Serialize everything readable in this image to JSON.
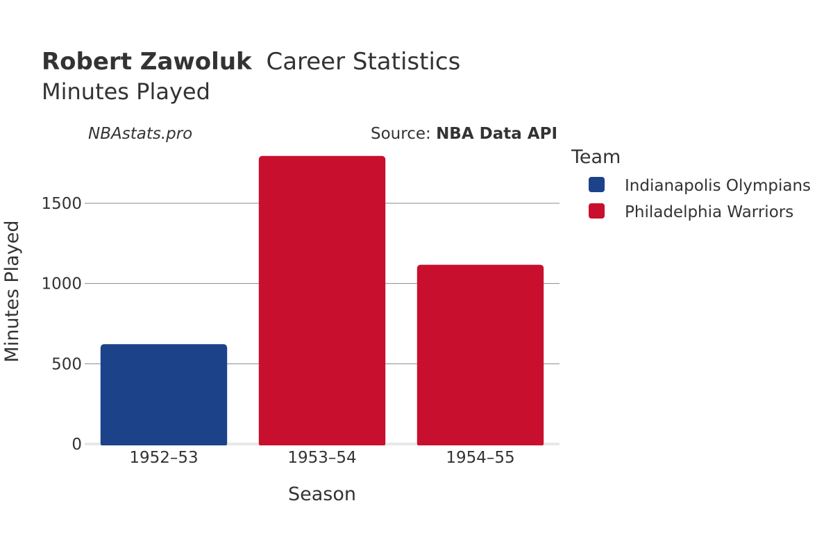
{
  "title": {
    "bold": "Robert Zawoluk",
    "rest": "Career Statistics"
  },
  "subtitle": "Minutes Played",
  "credit": {
    "left": "NBAstats.pro",
    "source_prefix": "Source: ",
    "source_bold": "NBA Data API"
  },
  "legend": {
    "title": "Team",
    "items": [
      {
        "label": "Indianapolis Olympians",
        "color": "#1c428a"
      },
      {
        "label": "Philadelphia Warriors",
        "color": "#c8102e"
      }
    ]
  },
  "chart_data": {
    "type": "bar",
    "title": "Robert Zawoluk Career Statistics",
    "subtitle": "Minutes Played",
    "xlabel": "Season",
    "ylabel": "Minutes Played",
    "categories": [
      "1952–53",
      "1953–54",
      "1954–55"
    ],
    "values": [
      622,
      1795,
      1117
    ],
    "teams": [
      "Indianapolis Olympians",
      "Philadelphia Warriors",
      "Philadelphia Warriors"
    ],
    "bar_colors": [
      "#1c428a",
      "#c8102e",
      "#c8102e"
    ],
    "ylim": [
      0,
      1850
    ],
    "yticks": [
      0,
      500,
      1000,
      1500
    ],
    "ytick_labels": [
      "0",
      "500",
      "1000",
      "1500"
    ],
    "grid": true,
    "legend_position": "right"
  }
}
